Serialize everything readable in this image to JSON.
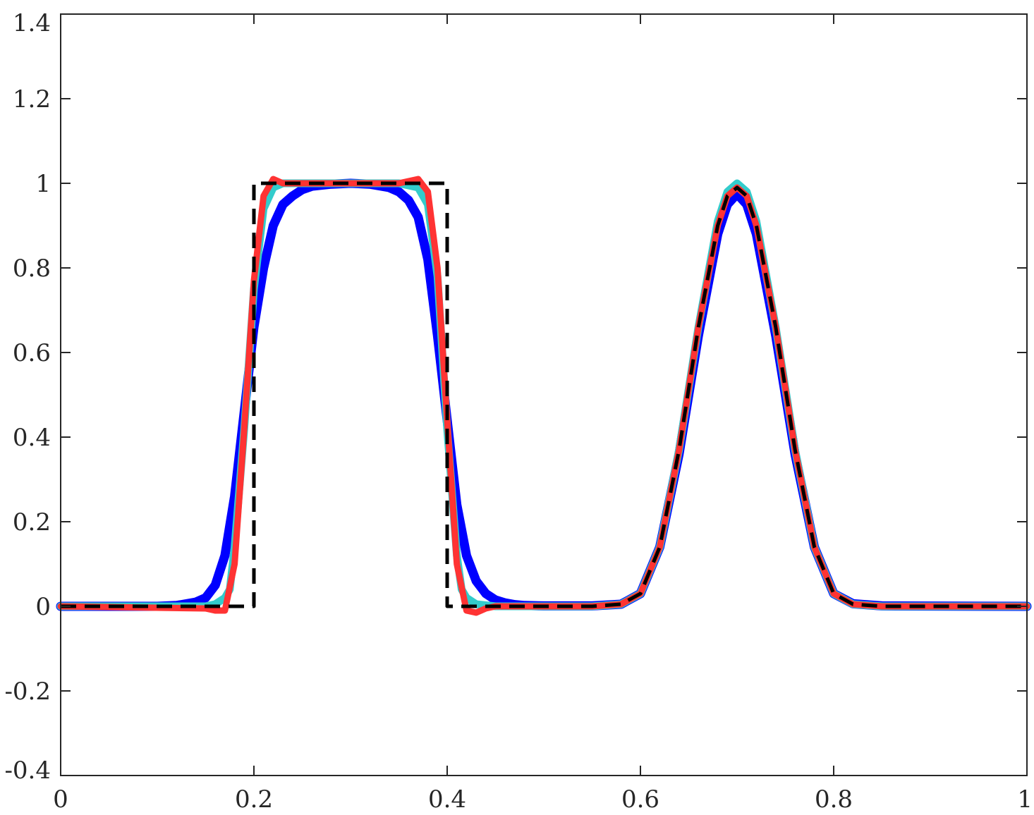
{
  "chart_data": {
    "type": "line",
    "title": "",
    "xlabel": "",
    "ylabel": "",
    "xlim": [
      0,
      1
    ],
    "ylim": [
      -0.4,
      1.4
    ],
    "grid": false,
    "legend": "none",
    "x_ticks": [
      {
        "value": 0,
        "label": "0"
      },
      {
        "value": 0.2,
        "label": "0.2"
      },
      {
        "value": 0.4,
        "label": "0.4"
      },
      {
        "value": 0.6,
        "label": "0.6"
      },
      {
        "value": 0.8,
        "label": "0.8"
      },
      {
        "value": 1,
        "label": "1"
      }
    ],
    "y_ticks": [
      {
        "value": -0.4,
        "label": "-0.4"
      },
      {
        "value": -0.2,
        "label": "-0.2"
      },
      {
        "value": 0,
        "label": "0"
      },
      {
        "value": 0.2,
        "label": "0.2"
      },
      {
        "value": 0.4,
        "label": "0.4"
      },
      {
        "value": 0.6,
        "label": "0.6"
      },
      {
        "value": 0.8,
        "label": "0.8"
      },
      {
        "value": 1,
        "label": "1"
      },
      {
        "value": 1.2,
        "label": "1.2"
      },
      {
        "value": 1.4,
        "label": "1.4"
      }
    ],
    "colors": {
      "blue": "#0000ff",
      "cyan": "#33cccc",
      "red": "#ff3333",
      "black": "#000000",
      "axis": "#262626"
    },
    "series": [
      {
        "color": "#0000ff",
        "style": "solid",
        "x": [
          0,
          0.1,
          0.12,
          0.14,
          0.15,
          0.16,
          0.17,
          0.18,
          0.19,
          0.2,
          0.21,
          0.22,
          0.23,
          0.24,
          0.25,
          0.26,
          0.28,
          0.3,
          0.32,
          0.34,
          0.35,
          0.36,
          0.37,
          0.38,
          0.39,
          0.4,
          0.41,
          0.42,
          0.43,
          0.44,
          0.45,
          0.46,
          0.47,
          0.48,
          0.5,
          0.55,
          0.58,
          0.6,
          0.62,
          0.64,
          0.66,
          0.68,
          0.69,
          0.7,
          0.71,
          0.72,
          0.74,
          0.76,
          0.78,
          0.8,
          0.82,
          0.85,
          1
        ],
        "y": [
          0,
          0,
          0.002,
          0.01,
          0.02,
          0.05,
          0.12,
          0.26,
          0.46,
          0.66,
          0.8,
          0.9,
          0.95,
          0.97,
          0.985,
          0.993,
          0.998,
          1,
          0.998,
          0.99,
          0.98,
          0.96,
          0.92,
          0.82,
          0.64,
          0.44,
          0.24,
          0.12,
          0.06,
          0.03,
          0.015,
          0.008,
          0.004,
          0.002,
          0.001,
          0.001,
          0.005,
          0.03,
          0.14,
          0.36,
          0.64,
          0.88,
          0.95,
          0.975,
          0.95,
          0.88,
          0.64,
          0.36,
          0.14,
          0.03,
          0.006,
          0.001,
          0
        ]
      },
      {
        "color": "#33cccc",
        "style": "solid",
        "x": [
          0,
          0.15,
          0.16,
          0.17,
          0.175,
          0.18,
          0.19,
          0.2,
          0.21,
          0.22,
          0.23,
          0.25,
          0.3,
          0.35,
          0.36,
          0.37,
          0.38,
          0.39,
          0.4,
          0.41,
          0.415,
          0.42,
          0.43,
          0.45,
          0.5,
          0.55,
          0.58,
          0.6,
          0.62,
          0.64,
          0.66,
          0.68,
          0.69,
          0.7,
          0.71,
          0.72,
          0.74,
          0.76,
          0.78,
          0.8,
          0.82,
          0.85,
          1
        ],
        "y": [
          0,
          0,
          0.005,
          0.02,
          0.04,
          0.14,
          0.42,
          0.75,
          0.94,
          0.99,
          1.0,
          1.0,
          1.0,
          1.0,
          0.995,
          0.99,
          0.95,
          0.78,
          0.42,
          0.12,
          0.04,
          0.02,
          0.005,
          0,
          0,
          0,
          0.005,
          0.03,
          0.14,
          0.37,
          0.66,
          0.91,
          0.98,
          1.0,
          0.98,
          0.91,
          0.66,
          0.37,
          0.14,
          0.03,
          0.005,
          0,
          0
        ]
      },
      {
        "color": "#ff3333",
        "style": "solid",
        "x": [
          0,
          0.15,
          0.16,
          0.17,
          0.18,
          0.19,
          0.2,
          0.21,
          0.22,
          0.23,
          0.25,
          0.3,
          0.35,
          0.37,
          0.38,
          0.39,
          0.4,
          0.41,
          0.42,
          0.43,
          0.44,
          0.45,
          0.5,
          0.55,
          0.58,
          0.6,
          0.62,
          0.64,
          0.66,
          0.68,
          0.69,
          0.7,
          0.71,
          0.72,
          0.74,
          0.76,
          0.78,
          0.8,
          0.82,
          0.85,
          1
        ],
        "y": [
          0,
          -0.005,
          -0.01,
          -0.01,
          0.1,
          0.42,
          0.77,
          0.97,
          1.01,
          1.0,
          1.0,
          1.0,
          1.0,
          1.01,
          0.98,
          0.8,
          0.44,
          0.1,
          -0.01,
          -0.015,
          -0.005,
          0,
          0,
          0,
          0.005,
          0.03,
          0.14,
          0.37,
          0.66,
          0.9,
          0.97,
          0.99,
          0.97,
          0.9,
          0.66,
          0.37,
          0.14,
          0.03,
          0.005,
          0,
          0
        ]
      },
      {
        "color": "#000000",
        "style": "dashed",
        "x": [
          0,
          0.2,
          0.2,
          0.4,
          0.4,
          0.55,
          0.58,
          0.6,
          0.62,
          0.64,
          0.66,
          0.68,
          0.69,
          0.7,
          0.71,
          0.72,
          0.74,
          0.76,
          0.78,
          0.8,
          0.82,
          0.85,
          1
        ],
        "y": [
          0,
          0,
          1,
          1,
          0,
          0,
          0.005,
          0.03,
          0.14,
          0.37,
          0.66,
          0.9,
          0.97,
          0.99,
          0.97,
          0.9,
          0.66,
          0.37,
          0.14,
          0.03,
          0.005,
          0,
          0
        ]
      }
    ]
  }
}
